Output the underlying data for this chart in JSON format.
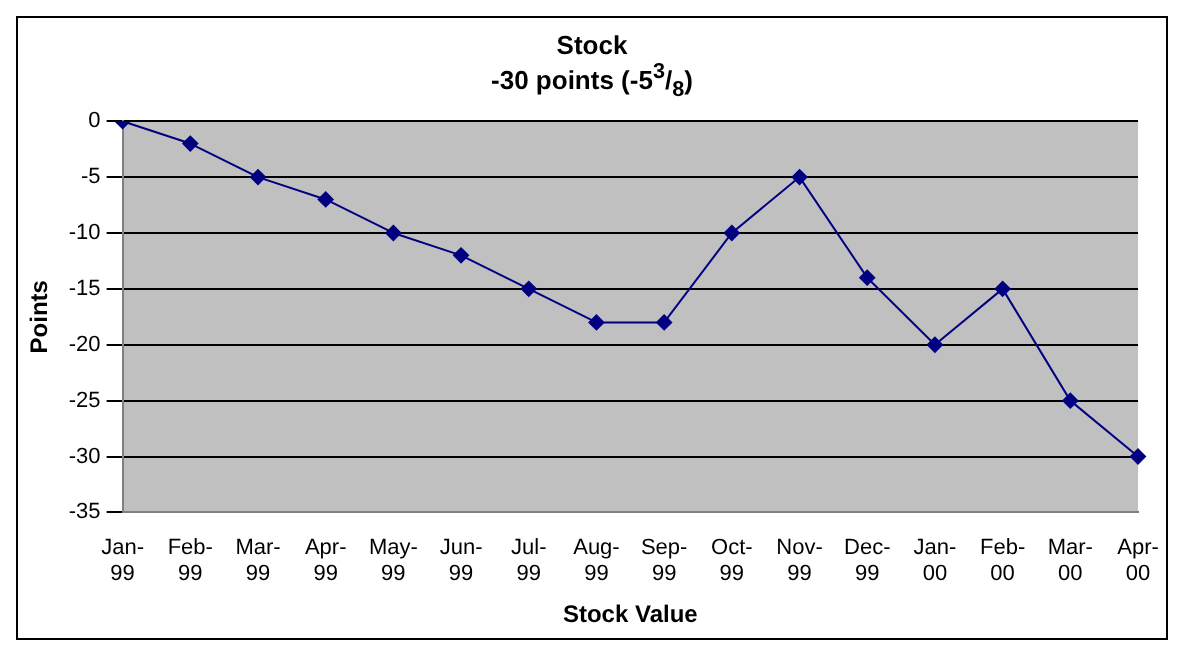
{
  "chart_data": {
    "type": "line",
    "title": "Stock",
    "subtitle": "-30 points (-5$^{3}$/$_{8}$)",
    "xlabel": "Stock Value",
    "ylabel": "Points",
    "categories": [
      "Jan-99",
      "Feb-99",
      "Mar-99",
      "Apr-99",
      "May-99",
      "Jun-99",
      "Jul-99",
      "Aug-99",
      "Sep-99",
      "Oct-99",
      "Nov-99",
      "Dec-99",
      "Jan-00",
      "Feb-00",
      "Mar-00",
      "Apr-00"
    ],
    "series": [
      {
        "color": "#000080",
        "values": [
          0,
          -2,
          -5,
          -7,
          -10,
          -12,
          -15,
          -18,
          -18,
          -10,
          -5,
          -14,
          -20,
          -15,
          -25,
          -30
        ]
      }
    ],
    "ylim": [
      -35,
      0
    ],
    "yticks": [
      -35,
      -30,
      -25,
      -20,
      -15,
      -10,
      -5,
      0
    ],
    "grid": "y",
    "legend": false,
    "marker": "diamond",
    "line_style": "solid"
  }
}
